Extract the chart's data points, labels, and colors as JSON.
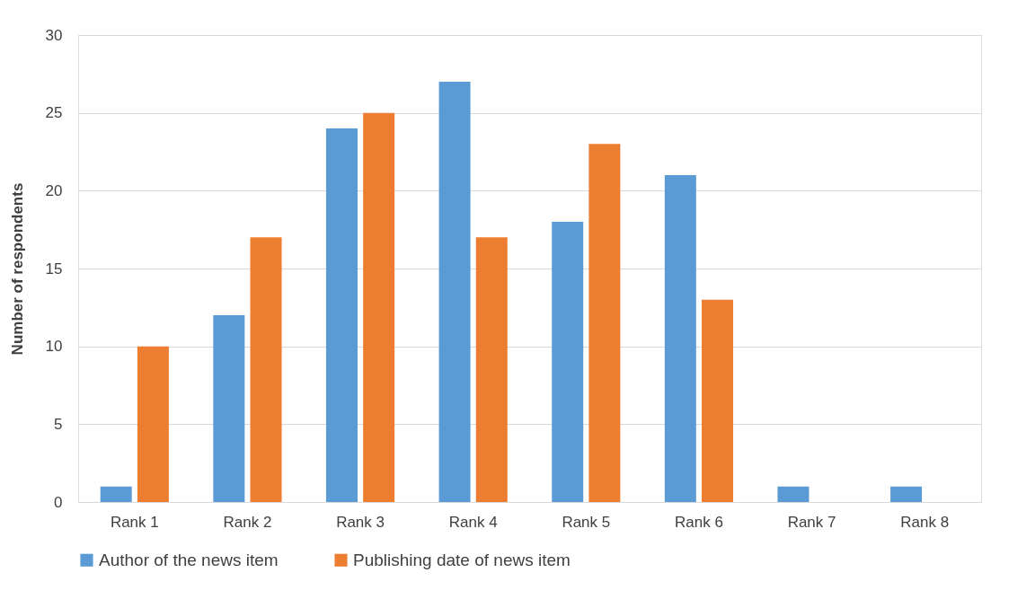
{
  "chart_data": {
    "type": "bar",
    "ylabel": "Number of respondents",
    "categories": [
      "Rank 1",
      "Rank 2",
      "Rank 3",
      "Rank 4",
      "Rank 5",
      "Rank 6",
      "Rank 7",
      "Rank 8"
    ],
    "series": [
      {
        "name": "Author of the news item",
        "color": "#5b9bd5",
        "values": [
          1,
          12,
          24,
          27,
          18,
          21,
          1,
          1
        ]
      },
      {
        "name": "Publishing date of news item",
        "color": "#ed7d31",
        "values": [
          10,
          17,
          25,
          17,
          23,
          13,
          0,
          0
        ]
      }
    ],
    "ylim": [
      0,
      30
    ],
    "yticks": [
      0,
      5,
      10,
      15,
      20,
      25,
      30
    ],
    "grid": "y",
    "legend": "bottom"
  }
}
